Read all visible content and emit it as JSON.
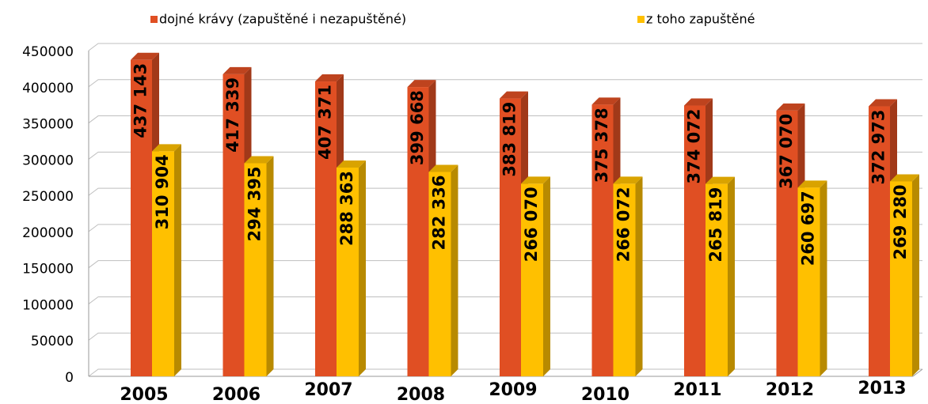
{
  "chart_data": {
    "type": "bar3d",
    "categories": [
      "2005",
      "2006",
      "2007",
      "2008",
      "2009",
      "2010",
      "2011",
      "2012",
      "2013"
    ],
    "series": [
      {
        "name": "dojné krávy (zapuštěné i nezapuštěné)",
        "color": "#e04f23",
        "values": [
          437143,
          417339,
          407371,
          399668,
          383819,
          375378,
          374072,
          367070,
          372973
        ],
        "value_labels": [
          "437 143",
          "417 339",
          "407 371",
          "399 668",
          "383 819",
          "375 378",
          "374 072",
          "367 070",
          "372 973"
        ]
      },
      {
        "name": "z toho zapuštěné",
        "color": "#ffc000",
        "values": [
          310904,
          294395,
          288363,
          282336,
          266070,
          266072,
          265819,
          260697,
          269280
        ],
        "value_labels": [
          "310 904",
          "294 395",
          "288 363",
          "282 336",
          "266 070",
          "266 072",
          "265 819",
          "260 697",
          "269 280"
        ]
      }
    ],
    "ylim": [
      0,
      450000
    ],
    "yticks": [
      0,
      50000,
      100000,
      150000,
      200000,
      250000,
      300000,
      350000,
      400000,
      450000
    ],
    "grid": true
  }
}
